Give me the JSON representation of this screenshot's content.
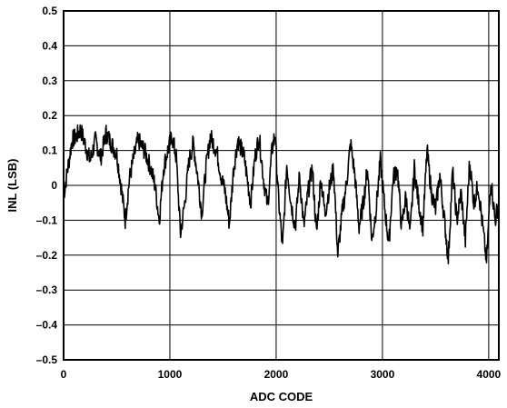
{
  "chart_data": {
    "type": "line",
    "title": "",
    "xlabel": "ADC CODE",
    "ylabel": "INL (LSB)",
    "xlim": [
      0,
      4095
    ],
    "ylim": [
      -0.5,
      0.5
    ],
    "grid": true,
    "x_ticks": [
      0,
      1000,
      2000,
      3000,
      4000
    ],
    "x_tick_labels": [
      "0",
      "1000",
      "2000",
      "3000",
      "4000"
    ],
    "y_ticks": [
      0.5,
      0.4,
      0.3,
      0.2,
      0.1,
      0,
      -0.1,
      -0.2,
      -0.3,
      -0.4,
      -0.5
    ],
    "y_tick_labels": [
      "0.5",
      "0.4",
      "0.3",
      "0.2",
      "0.1",
      "0",
      "–0.1",
      "–0.2",
      "–0.3",
      "–0.4",
      "–0.5"
    ],
    "line_color": "#000000",
    "series": [
      {
        "x": [
          0,
          40,
          80,
          120,
          160,
          200,
          250,
          300,
          350,
          400,
          450,
          500,
          540,
          560,
          580,
          620,
          660,
          700,
          760,
          820,
          860,
          880,
          900,
          940,
          980,
          1020,
          1060,
          1100,
          1140,
          1180,
          1220,
          1260,
          1300,
          1340,
          1380,
          1440,
          1480,
          1520,
          1560,
          1600,
          1640,
          1700,
          1760,
          1800,
          1840,
          1880,
          1920,
          1960,
          1990,
          2020,
          2060,
          2100,
          2140,
          2180,
          2220,
          2260,
          2300,
          2340,
          2380,
          2420,
          2460,
          2500,
          2540,
          2580,
          2620,
          2660,
          2700,
          2740,
          2780,
          2820,
          2860,
          2900,
          2940,
          2980,
          3020,
          3060,
          3100,
          3140,
          3180,
          3220,
          3260,
          3300,
          3340,
          3380,
          3420,
          3460,
          3500,
          3540,
          3580,
          3620,
          3660,
          3700,
          3740,
          3780,
          3820,
          3860,
          3900,
          3940,
          3980,
          4020,
          4060,
          4095
        ],
        "y": [
          -0.03,
          0.05,
          0.13,
          0.14,
          0.16,
          0.12,
          0.07,
          0.13,
          0.08,
          0.15,
          0.12,
          0.09,
          0.0,
          -0.05,
          -0.1,
          0.02,
          0.08,
          0.13,
          0.1,
          0.05,
          0.0,
          -0.05,
          -0.1,
          0.05,
          0.1,
          0.14,
          0.08,
          -0.14,
          -0.05,
          0.07,
          0.12,
          0.03,
          -0.08,
          0.05,
          0.14,
          0.1,
          0.03,
          -0.02,
          -0.11,
          0.05,
          0.13,
          0.08,
          -0.05,
          0.08,
          0.14,
          0.02,
          -0.06,
          0.1,
          0.15,
          -0.03,
          -0.18,
          0.06,
          -0.05,
          -0.12,
          0.03,
          -0.12,
          -0.02,
          0.05,
          -0.14,
          0.02,
          -0.08,
          -0.01,
          0.05,
          -0.2,
          -0.08,
          0.0,
          0.12,
          0.03,
          -0.12,
          -0.05,
          0.05,
          -0.16,
          -0.07,
          0.07,
          -0.06,
          -0.17,
          0.02,
          0.05,
          -0.12,
          -0.03,
          -0.14,
          0.05,
          -0.05,
          -0.12,
          0.1,
          -0.02,
          -0.07,
          0.03,
          -0.09,
          -0.21,
          0.04,
          -0.1,
          -0.02,
          -0.16,
          0.07,
          -0.05,
          0.0,
          -0.11,
          -0.22,
          0.02,
          -0.1,
          -0.05
        ]
      }
    ]
  }
}
